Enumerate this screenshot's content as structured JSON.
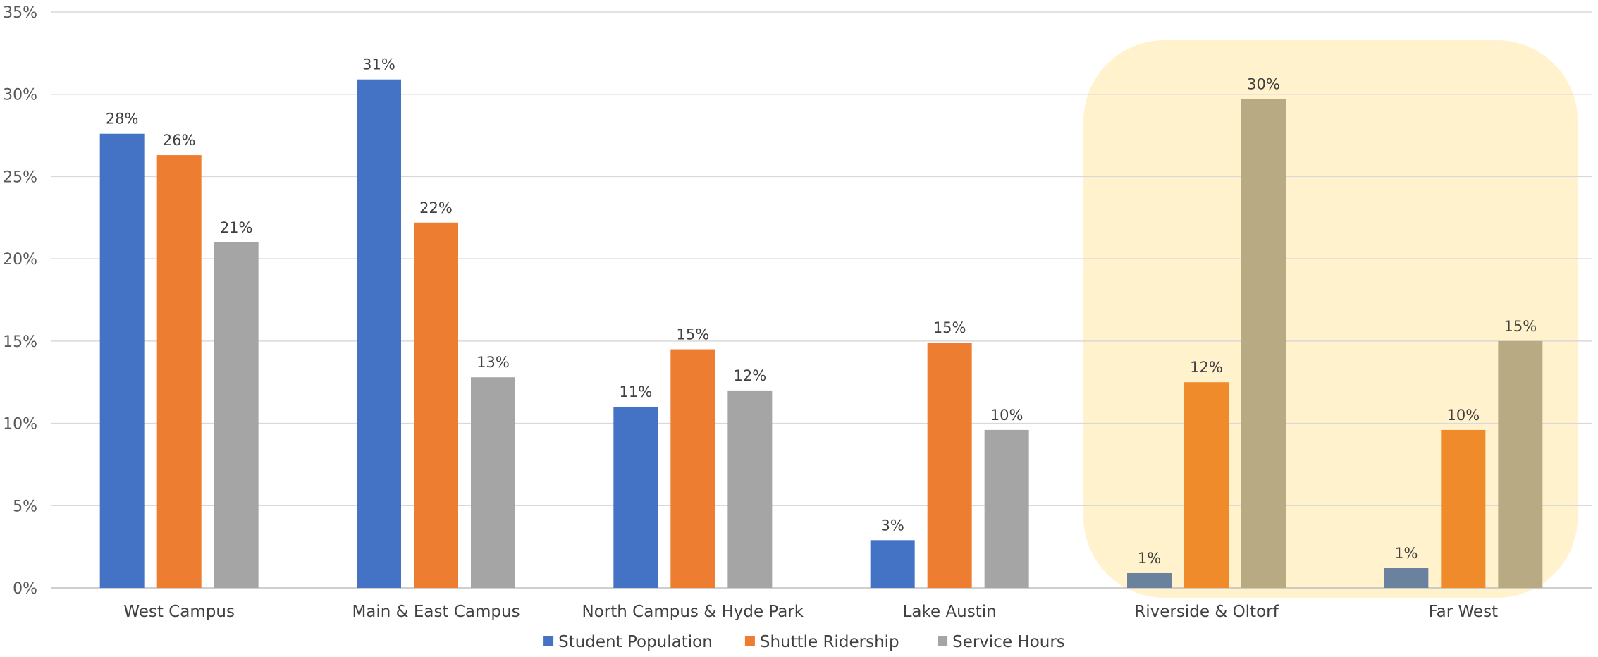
{
  "chart_data": {
    "type": "bar",
    "categories": [
      "West Campus",
      "Main & East Campus",
      "North Campus & Hyde Park",
      "Lake Austin",
      "Riverside & Oltorf",
      "Far West"
    ],
    "series": [
      {
        "name": "Student Population",
        "values": [
          27.6,
          30.9,
          11.0,
          2.9,
          0.9,
          1.2
        ],
        "labels": [
          "28%",
          "31%",
          "11%",
          "3%",
          "1%",
          "1%"
        ],
        "color": "#4472C4",
        "highlight_color": "#6A829E"
      },
      {
        "name": "Shuttle Ridership",
        "values": [
          26.3,
          22.2,
          14.5,
          14.9,
          12.5,
          9.6
        ],
        "labels": [
          "26%",
          "22%",
          "15%",
          "15%",
          "12%",
          "10%"
        ],
        "color": "#ED7D31",
        "highlight_color": "#EF8B2A"
      },
      {
        "name": "Service Hours",
        "values": [
          21.0,
          12.8,
          12.0,
          9.6,
          29.7,
          15.0
        ],
        "labels": [
          "21%",
          "13%",
          "12%",
          "10%",
          "30%",
          "15%"
        ],
        "color": "#A5A5A5",
        "highlight_color": "#B8AB84"
      }
    ],
    "highlighted_categories": [
      "Riverside & Oltorf",
      "Far West"
    ],
    "highlight_fill": "#FFF2CC",
    "yticks": [
      "0%",
      "5%",
      "10%",
      "15%",
      "20%",
      "25%",
      "30%",
      "35%"
    ],
    "ylim": [
      0,
      35
    ],
    "grid": true,
    "legend_position": "bottom",
    "title": "",
    "xlabel": "",
    "ylabel": ""
  }
}
